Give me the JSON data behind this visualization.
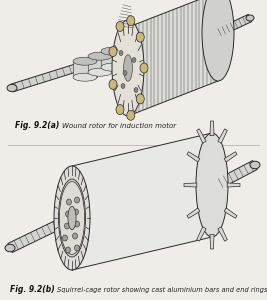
{
  "background_color": "#f0ede8",
  "fig_width": 2.67,
  "fig_height": 3.0,
  "dpi": 100,
  "caption_a_bold": "Fig. 9.2(a)",
  "caption_a_text": "Wound rotor for induction motor",
  "caption_b_bold": "Fig. 9.2(b)",
  "caption_b_text": "Squirrel-cage rotor showing cast aluminium bars and end rings",
  "line_color": "#2a2a2a",
  "fill_light": "#e8e8e4",
  "fill_mid": "#d0cfc8",
  "fill_dark": "#b8b5b0",
  "fill_shaft": "#c8c8c4",
  "fill_winding": "#c8b888",
  "fill_face": "#dedad4"
}
